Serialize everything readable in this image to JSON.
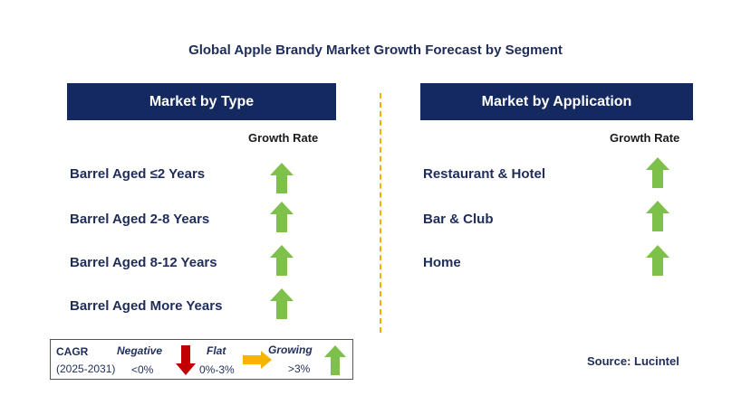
{
  "title": "Global Apple Brandy Market Growth Forecast by Segment",
  "colors": {
    "header_bg": "#14295f",
    "up_arrow": "#7dc14b",
    "down_arrow": "#c00000",
    "flat_arrow": "#f5b400",
    "divider": "#f0b000"
  },
  "left_panel": {
    "header": "Market by Type",
    "growth_label": "Growth Rate",
    "rows": [
      {
        "label": "Barrel Aged ≤2 Years",
        "trend": "up"
      },
      {
        "label": "Barrel Aged 2-8 Years",
        "trend": "up"
      },
      {
        "label": "Barrel Aged 8-12 Years",
        "trend": "up"
      },
      {
        "label": "Barrel Aged More Years",
        "trend": "up"
      }
    ]
  },
  "right_panel": {
    "header": "Market by Application",
    "growth_label": "Growth Rate",
    "rows": [
      {
        "label": "Restaurant & Hotel",
        "trend": "up"
      },
      {
        "label": "Bar & Club",
        "trend": "up"
      },
      {
        "label": "Home",
        "trend": "up"
      }
    ]
  },
  "legend": {
    "cagr": "CAGR",
    "period": "(2025-2031)",
    "negative": "Negative",
    "negative_value": "<0%",
    "flat": "Flat",
    "flat_value": "0%-3%",
    "growing": "Growing",
    "growing_value": ">3%"
  },
  "source": "Source: Lucintel"
}
